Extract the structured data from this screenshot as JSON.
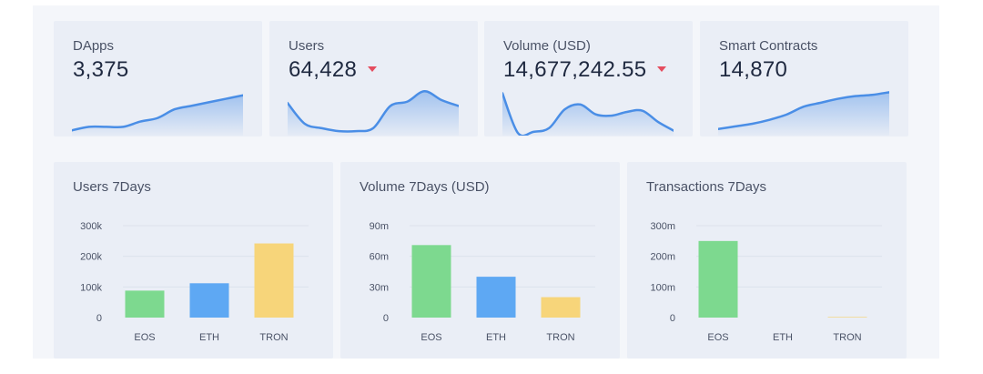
{
  "stats": [
    {
      "title": "DApps",
      "value": "3,375",
      "trend": "none"
    },
    {
      "title": "Users",
      "value": "64,428",
      "trend": "down"
    },
    {
      "title": "Volume (USD)",
      "value": "14,677,242.55",
      "trend": "down"
    },
    {
      "title": "Smart Contracts",
      "value": "14,870",
      "trend": "none"
    }
  ],
  "colors": {
    "spark_line": "#4a8ee6",
    "trend_down": "#e54d5f",
    "eos": "#7dd98f",
    "eth": "#5ea8f3",
    "tron": "#f7d57a"
  },
  "chart_data": [
    {
      "type": "line",
      "title": "DApps",
      "x": [
        0,
        1,
        2,
        3,
        4,
        5,
        6,
        7,
        8,
        9,
        10
      ],
      "values": [
        3,
        5,
        5,
        5,
        8,
        10,
        15,
        17,
        19,
        21,
        23
      ],
      "ylim": [
        0,
        27
      ]
    },
    {
      "type": "line",
      "title": "Users",
      "x": [
        0,
        1,
        2,
        3,
        4,
        5,
        6,
        7,
        8,
        9,
        10
      ],
      "values": [
        22,
        8,
        5,
        3,
        3,
        5,
        20,
        23,
        30,
        24,
        20
      ],
      "ylim": [
        0,
        32
      ]
    },
    {
      "type": "line",
      "title": "Volume (USD)",
      "x": [
        0,
        1,
        2,
        3,
        4,
        5,
        6,
        7,
        8,
        9,
        10,
        11
      ],
      "values": [
        34,
        2,
        3,
        6,
        21,
        25,
        17,
        16,
        19,
        20,
        11,
        4
      ],
      "ylim": [
        0,
        38
      ]
    },
    {
      "type": "line",
      "title": "Smart Contracts",
      "x": [
        0,
        1,
        2,
        3,
        4,
        5,
        6,
        7,
        8,
        9,
        10
      ],
      "values": [
        5,
        7,
        9,
        12,
        16,
        22,
        25,
        28,
        30,
        31,
        33
      ],
      "ylim": [
        0,
        36
      ]
    },
    {
      "type": "bar",
      "title": "Users 7Days",
      "categories": [
        "EOS",
        "ETH",
        "TRON"
      ],
      "values": [
        88000,
        112000,
        242000
      ],
      "yticks": [
        "0",
        "100k",
        "200k",
        "300k"
      ],
      "ylim": [
        0,
        300000
      ],
      "grid": true
    },
    {
      "type": "bar",
      "title": "Volume 7Days (USD)",
      "categories": [
        "EOS",
        "ETH",
        "TRON"
      ],
      "values": [
        71000000,
        40000000,
        20000000
      ],
      "yticks": [
        "0",
        "30m",
        "60m",
        "90m"
      ],
      "ylim": [
        0,
        90000000
      ],
      "grid": true
    },
    {
      "type": "bar",
      "title": "Transactions 7Days",
      "categories": [
        "EOS",
        "ETH",
        "TRON"
      ],
      "values": [
        250000000,
        0,
        2000000
      ],
      "yticks": [
        "0",
        "100m",
        "200m",
        "300m"
      ],
      "ylim": [
        0,
        300000000
      ],
      "grid": true
    }
  ]
}
